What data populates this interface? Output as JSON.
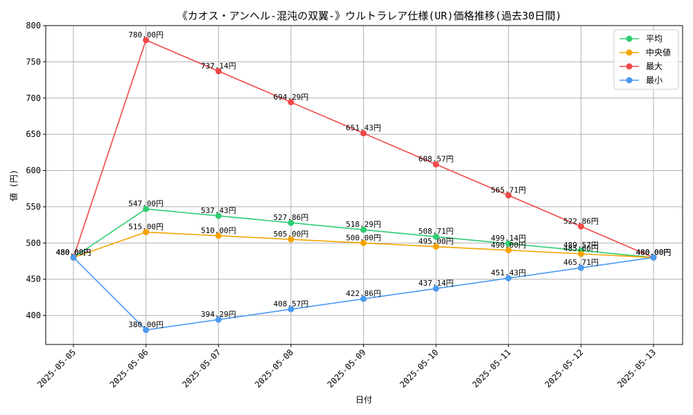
{
  "chart_data": {
    "type": "line",
    "title": "《カオス・アンヘル-混沌の双翼-》ウルトラレア仕様(UR)価格推移(過去30日間)",
    "xlabel": "日付",
    "ylabel": "値 (円)",
    "categories": [
      "2025-05-05",
      "2025-05-06",
      "2025-05-07",
      "2025-05-08",
      "2025-05-09",
      "2025-05-10",
      "2025-05-11",
      "2025-05-12",
      "2025-05-13"
    ],
    "ylim": [
      360,
      800
    ],
    "yticks": [
      400,
      450,
      500,
      550,
      600,
      650,
      700,
      750,
      800
    ],
    "grid": true,
    "legend_position": "top-right",
    "series": [
      {
        "name": "平均",
        "color": "#2ecc71",
        "values": [
          480.0,
          547.0,
          537.43,
          527.86,
          518.29,
          508.71,
          499.14,
          489.57,
          480.0
        ],
        "labels": [
          "480.00円",
          "547.00円",
          "537.43円",
          "527.86円",
          "518.29円",
          "508.71円",
          "499.14円",
          "489.57円",
          "480.00円"
        ]
      },
      {
        "name": "中央値",
        "color": "#f5a300",
        "values": [
          480.0,
          515.0,
          510.0,
          505.0,
          500.0,
          495.0,
          490.0,
          485.0,
          480.0
        ],
        "labels": [
          "480.00円",
          "515.00円",
          "510.00円",
          "505.00円",
          "500.00円",
          "495.00円",
          "490.00円",
          "485.00円",
          "480.00円"
        ]
      },
      {
        "name": "最大",
        "color": "#f04848",
        "values": [
          480.0,
          780.0,
          737.14,
          694.29,
          651.43,
          608.57,
          565.71,
          522.86,
          480.0
        ],
        "labels": [
          "480.00円",
          "780.00円",
          "737.14円",
          "694.29円",
          "651.43円",
          "608.57円",
          "565.71円",
          "522.86円",
          "480.00円"
        ]
      },
      {
        "name": "最小",
        "color": "#4a9af0",
        "values": [
          480.0,
          380.0,
          394.29,
          408.57,
          422.86,
          437.14,
          451.43,
          465.71,
          480.0
        ],
        "labels": [
          "480.00円",
          "380.00円",
          "394.29円",
          "408.57円",
          "422.86円",
          "437.14円",
          "451.43円",
          "465.71円",
          "480.00円"
        ]
      }
    ]
  }
}
